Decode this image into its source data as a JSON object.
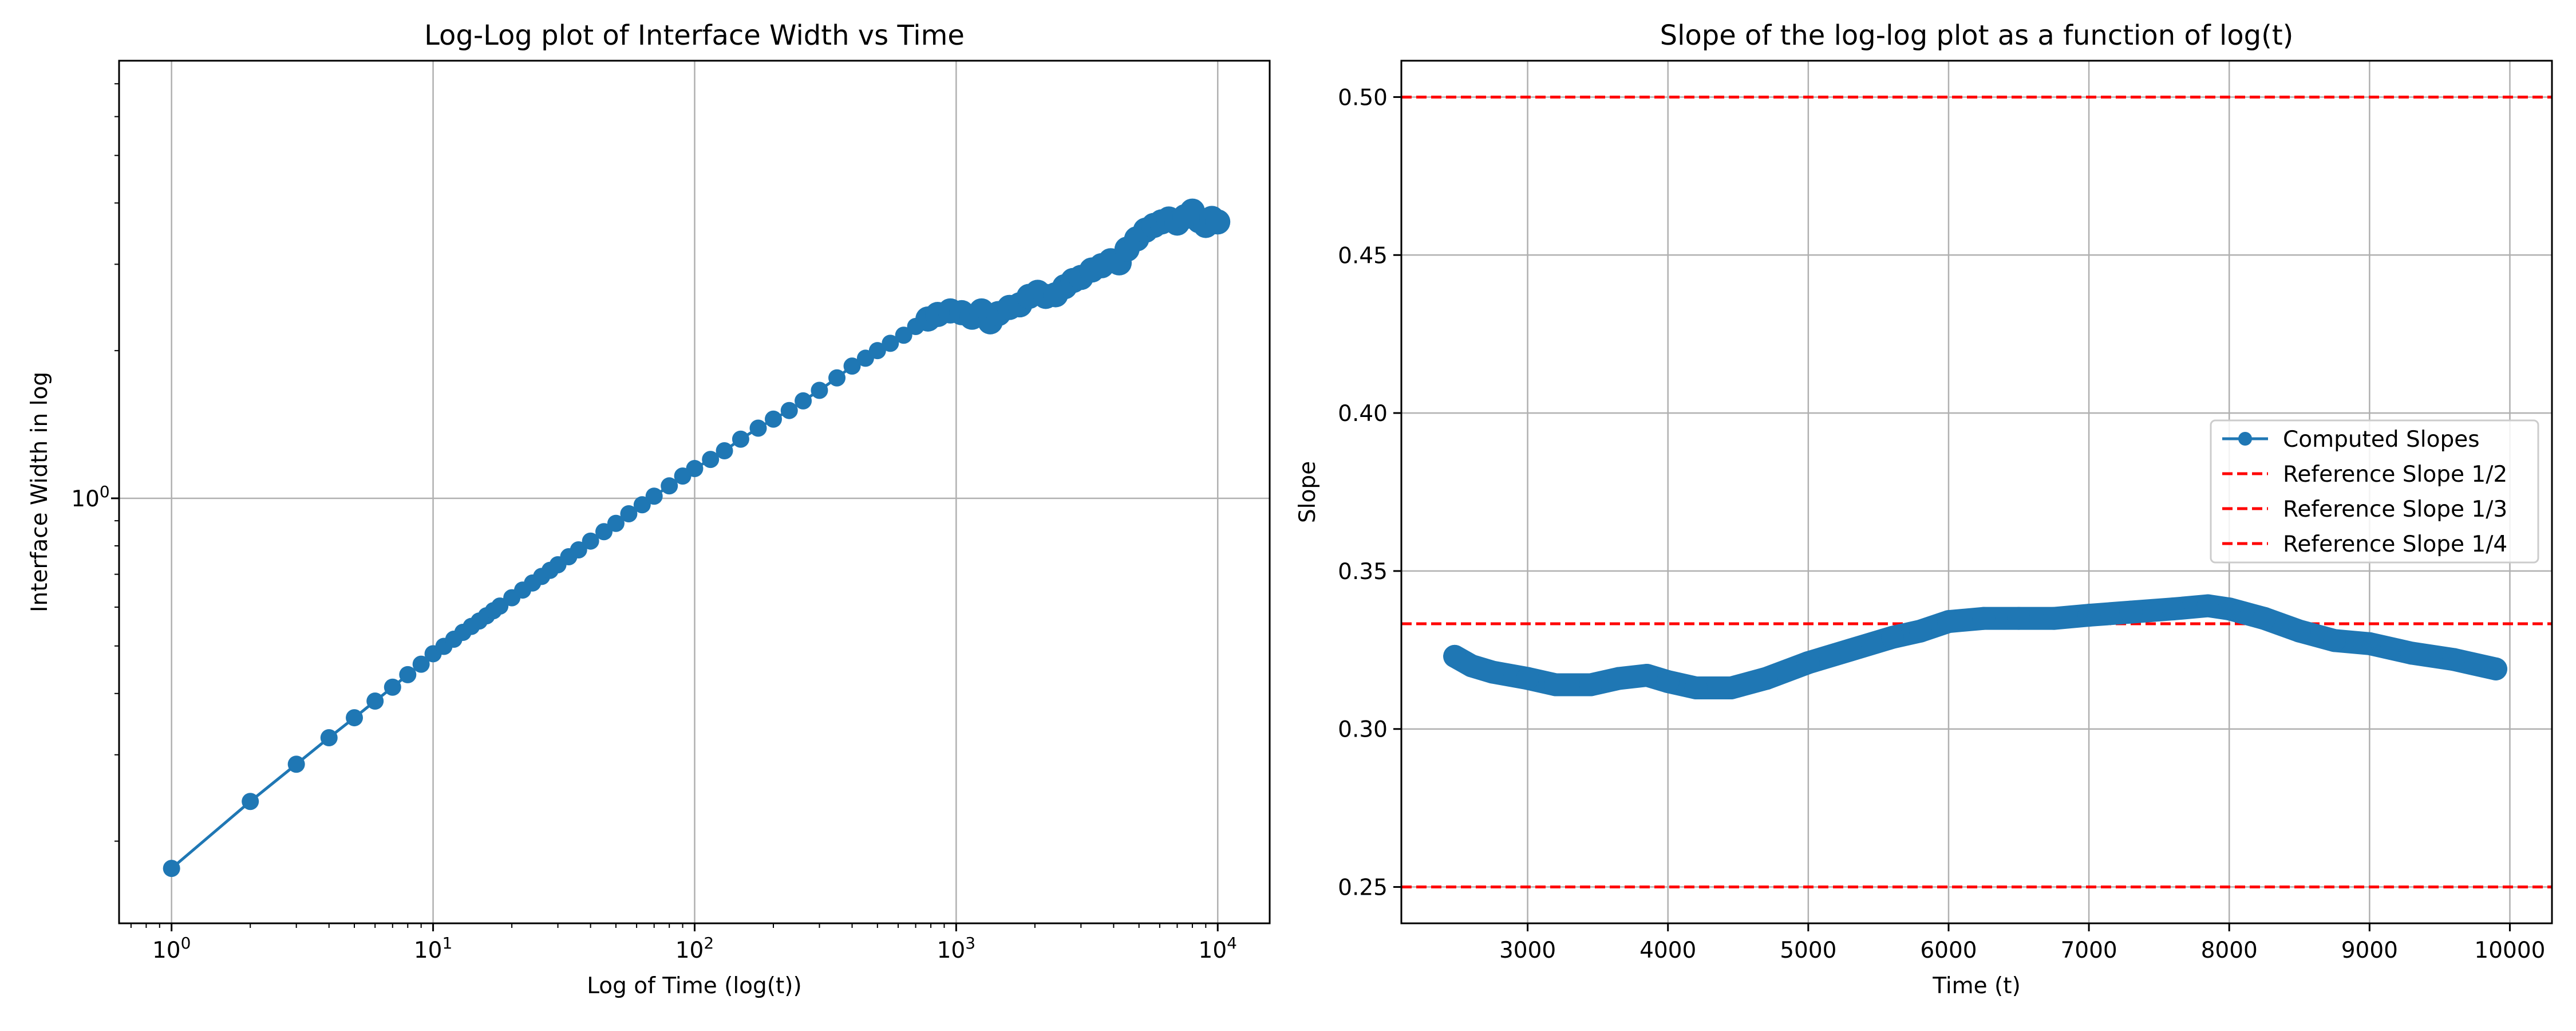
{
  "colors": {
    "series": "#1f77b4",
    "reference": "#ff0000",
    "grid": "#b0b0b0",
    "axis": "#000000",
    "background": "#ffffff"
  },
  "chart_data": [
    {
      "type": "line",
      "title": "Log-Log plot of Interface Width vs Time",
      "xlabel": "Log of Time (log(t))",
      "ylabel": "Interface Width in log",
      "x_scale": "log",
      "y_scale": "log",
      "xlim": [
        0.63,
        15800
      ],
      "ylim": [
        0.136,
        7.8
      ],
      "grid": true,
      "x_ticks": [
        {
          "value": 1,
          "base": "10",
          "exp": "0"
        },
        {
          "value": 10,
          "base": "10",
          "exp": "1"
        },
        {
          "value": 100,
          "base": "10",
          "exp": "2"
        },
        {
          "value": 1000,
          "base": "10",
          "exp": "3"
        },
        {
          "value": 10000,
          "base": "10",
          "exp": "4"
        }
      ],
      "y_ticks": [
        {
          "value": 1,
          "base": "10",
          "exp": "0"
        }
      ],
      "series": [
        {
          "marker": "circle",
          "points": [
            [
              1,
              0.176
            ],
            [
              2,
              0.241
            ],
            [
              3,
              0.287
            ],
            [
              4,
              0.325
            ],
            [
              5,
              0.357
            ],
            [
              6,
              0.386
            ],
            [
              7,
              0.412
            ],
            [
              8,
              0.437
            ],
            [
              9,
              0.459
            ],
            [
              10,
              0.482
            ],
            [
              11,
              0.499
            ],
            [
              12,
              0.516
            ],
            [
              13,
              0.533
            ],
            [
              14,
              0.548
            ],
            [
              15,
              0.562
            ],
            [
              16,
              0.576
            ],
            [
              17,
              0.59
            ],
            [
              18,
              0.603
            ],
            [
              20,
              0.627
            ],
            [
              22,
              0.65
            ],
            [
              24,
              0.672
            ],
            [
              26,
              0.693
            ],
            [
              28,
              0.713
            ],
            [
              30,
              0.732
            ],
            [
              33,
              0.76
            ],
            [
              36,
              0.785
            ],
            [
              40,
              0.818
            ],
            [
              45,
              0.855
            ],
            [
              50,
              0.889
            ],
            [
              56,
              0.93
            ],
            [
              63,
              0.97
            ],
            [
              70,
              1.01
            ],
            [
              80,
              1.06
            ],
            [
              90,
              1.11
            ],
            [
              100,
              1.15
            ],
            [
              115,
              1.2
            ],
            [
              130,
              1.25
            ],
            [
              150,
              1.32
            ],
            [
              175,
              1.39
            ],
            [
              200,
              1.45
            ],
            [
              230,
              1.51
            ],
            [
              260,
              1.58
            ],
            [
              300,
              1.66
            ],
            [
              350,
              1.76
            ],
            [
              400,
              1.86
            ],
            [
              450,
              1.93
            ],
            [
              500,
              2.0
            ],
            [
              560,
              2.07
            ],
            [
              630,
              2.15
            ],
            [
              700,
              2.24
            ],
            [
              780,
              2.32
            ],
            [
              850,
              2.37
            ],
            [
              950,
              2.41
            ],
            [
              1050,
              2.39
            ],
            [
              1150,
              2.34
            ],
            [
              1250,
              2.41
            ],
            [
              1350,
              2.29
            ],
            [
              1450,
              2.38
            ],
            [
              1600,
              2.45
            ],
            [
              1750,
              2.48
            ],
            [
              1900,
              2.58
            ],
            [
              2050,
              2.63
            ],
            [
              2200,
              2.58
            ],
            [
              2400,
              2.6
            ],
            [
              2600,
              2.7
            ],
            [
              2800,
              2.78
            ],
            [
              3000,
              2.82
            ],
            [
              3300,
              2.92
            ],
            [
              3600,
              2.98
            ],
            [
              3900,
              3.05
            ],
            [
              4200,
              3.02
            ],
            [
              4500,
              3.22
            ],
            [
              4900,
              3.38
            ],
            [
              5300,
              3.52
            ],
            [
              5700,
              3.6
            ],
            [
              6100,
              3.66
            ],
            [
              6500,
              3.71
            ],
            [
              7000,
              3.64
            ],
            [
              7500,
              3.75
            ],
            [
              8000,
              3.85
            ],
            [
              8500,
              3.68
            ],
            [
              9000,
              3.6
            ],
            [
              9500,
              3.72
            ],
            [
              10000,
              3.66
            ]
          ]
        }
      ]
    },
    {
      "type": "line",
      "title": "Slope of the log-log plot as a function of log(t)",
      "xlabel": "Time (t)",
      "ylabel": "Slope",
      "xlim": [
        2100,
        10300
      ],
      "ylim": [
        0.2385,
        0.5115
      ],
      "grid": true,
      "x_ticks": [
        3000,
        4000,
        5000,
        6000,
        7000,
        8000,
        9000,
        10000
      ],
      "y_ticks": [
        0.25,
        0.3,
        0.35,
        0.4,
        0.45,
        0.5
      ],
      "x_tick_labels": [
        "3000",
        "4000",
        "5000",
        "6000",
        "7000",
        "8000",
        "9000",
        "10000"
      ],
      "y_tick_labels": [
        "0.25",
        "0.30",
        "0.35",
        "0.40",
        "0.45",
        "0.50"
      ],
      "legend_position": "center-right",
      "series": [
        {
          "name": "Computed Slopes",
          "marker": "circle",
          "points": [
            [
              2480,
              0.323
            ],
            [
              2600,
              0.32
            ],
            [
              2750,
              0.318
            ],
            [
              3000,
              0.316
            ],
            [
              3200,
              0.314
            ],
            [
              3450,
              0.314
            ],
            [
              3650,
              0.316
            ],
            [
              3850,
              0.317
            ],
            [
              4000,
              0.315
            ],
            [
              4200,
              0.313
            ],
            [
              4450,
              0.313
            ],
            [
              4700,
              0.316
            ],
            [
              5000,
              0.321
            ],
            [
              5300,
              0.325
            ],
            [
              5600,
              0.329
            ],
            [
              5800,
              0.331
            ],
            [
              6000,
              0.334
            ],
            [
              6250,
              0.335
            ],
            [
              6500,
              0.335
            ],
            [
              6750,
              0.335
            ],
            [
              7000,
              0.336
            ],
            [
              7300,
              0.337
            ],
            [
              7600,
              0.338
            ],
            [
              7850,
              0.339
            ],
            [
              8000,
              0.338
            ],
            [
              8250,
              0.335
            ],
            [
              8500,
              0.331
            ],
            [
              8750,
              0.328
            ],
            [
              9000,
              0.327
            ],
            [
              9300,
              0.324
            ],
            [
              9600,
              0.322
            ],
            [
              9900,
              0.319
            ]
          ]
        },
        {
          "name": "Reference Slope 1/2",
          "value": 0.5,
          "style": "dashed"
        },
        {
          "name": "Reference Slope 1/3",
          "value": 0.3333,
          "style": "dashed"
        },
        {
          "name": "Reference Slope 1/4",
          "value": 0.25,
          "style": "dashed"
        }
      ]
    }
  ]
}
